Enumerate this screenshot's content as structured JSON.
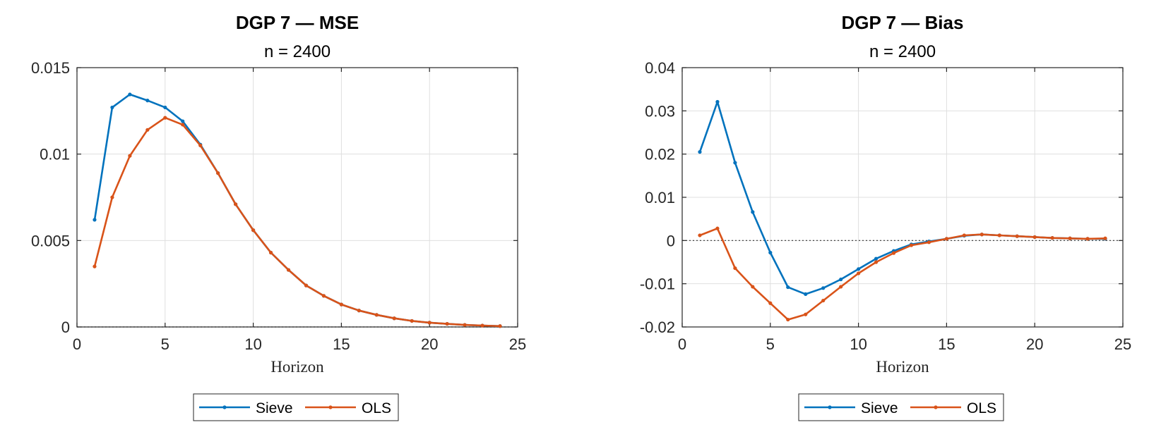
{
  "chart_data": [
    {
      "type": "line",
      "title": "DGP 7  —  MSE",
      "subtitle": "n = 2400",
      "xlabel": "Horizon",
      "ylabel": "",
      "xlim": [
        0,
        25
      ],
      "ylim": [
        0,
        0.015
      ],
      "xticks": [
        0,
        5,
        10,
        15,
        20,
        25
      ],
      "xtick_labels": [
        "0",
        "5",
        "10",
        "15",
        "20",
        "25"
      ],
      "yticks": [
        0,
        0.005,
        0.01,
        0.015
      ],
      "ytick_labels": [
        "0",
        "0.005",
        "0.01",
        "0.015"
      ],
      "grid": true,
      "zero_line": true,
      "legend_position": "bottom",
      "x": [
        1,
        2,
        3,
        4,
        5,
        6,
        7,
        8,
        9,
        10,
        11,
        12,
        13,
        14,
        15,
        16,
        17,
        18,
        19,
        20,
        21,
        22,
        23,
        24
      ],
      "series": [
        {
          "name": "Sieve",
          "color": "#0072BD",
          "values": [
            0.0062,
            0.0127,
            0.01345,
            0.0131,
            0.0127,
            0.0119,
            0.01055,
            0.0089,
            0.0071,
            0.0056,
            0.0043,
            0.0033,
            0.0024,
            0.0018,
            0.0013,
            0.00095,
            0.0007,
            0.0005,
            0.00035,
            0.00025,
            0.00018,
            0.00012,
            8e-05,
            5e-05
          ]
        },
        {
          "name": "OLS",
          "color": "#D95319",
          "values": [
            0.0035,
            0.0075,
            0.0099,
            0.0114,
            0.0121,
            0.0117,
            0.0105,
            0.0089,
            0.0071,
            0.0056,
            0.0043,
            0.0033,
            0.0024,
            0.0018,
            0.0013,
            0.00095,
            0.0007,
            0.0005,
            0.00035,
            0.00025,
            0.00018,
            0.00012,
            8e-05,
            5e-05
          ]
        }
      ]
    },
    {
      "type": "line",
      "title": "DGP 7  —  Bias",
      "subtitle": "n = 2400",
      "xlabel": "Horizon",
      "ylabel": "",
      "xlim": [
        0,
        25
      ],
      "ylim": [
        -0.02,
        0.04
      ],
      "xticks": [
        0,
        5,
        10,
        15,
        20,
        25
      ],
      "xtick_labels": [
        "0",
        "5",
        "10",
        "15",
        "20",
        "25"
      ],
      "yticks": [
        -0.02,
        -0.01,
        0,
        0.01,
        0.02,
        0.03,
        0.04
      ],
      "ytick_labels": [
        "-0.02",
        "-0.01",
        "0",
        "0.01",
        "0.02",
        "0.03",
        "0.04"
      ],
      "grid": true,
      "zero_line": true,
      "legend_position": "bottom",
      "x": [
        1,
        2,
        3,
        4,
        5,
        6,
        7,
        8,
        9,
        10,
        11,
        12,
        13,
        14,
        15,
        16,
        17,
        18,
        19,
        20,
        21,
        22,
        23,
        24
      ],
      "series": [
        {
          "name": "Sieve",
          "color": "#0072BD",
          "values": [
            0.0205,
            0.0321,
            0.018,
            0.0066,
            -0.0028,
            -0.0108,
            -0.0124,
            -0.011,
            -0.009,
            -0.0066,
            -0.0042,
            -0.0024,
            -0.0009,
            -0.0002,
            0.0004,
            0.0011,
            0.0014,
            0.0012,
            0.001,
            0.0008,
            0.0006,
            0.0005,
            0.0004,
            0.0004
          ]
        },
        {
          "name": "OLS",
          "color": "#D95319",
          "values": [
            0.0012,
            0.0028,
            -0.0064,
            -0.0107,
            -0.0145,
            -0.0183,
            -0.0171,
            -0.0139,
            -0.0107,
            -0.0076,
            -0.005,
            -0.0029,
            -0.0011,
            -0.0004,
            0.0004,
            0.0012,
            0.0014,
            0.0012,
            0.001,
            0.0008,
            0.0006,
            0.0005,
            0.0004,
            0.0005
          ]
        }
      ]
    }
  ]
}
